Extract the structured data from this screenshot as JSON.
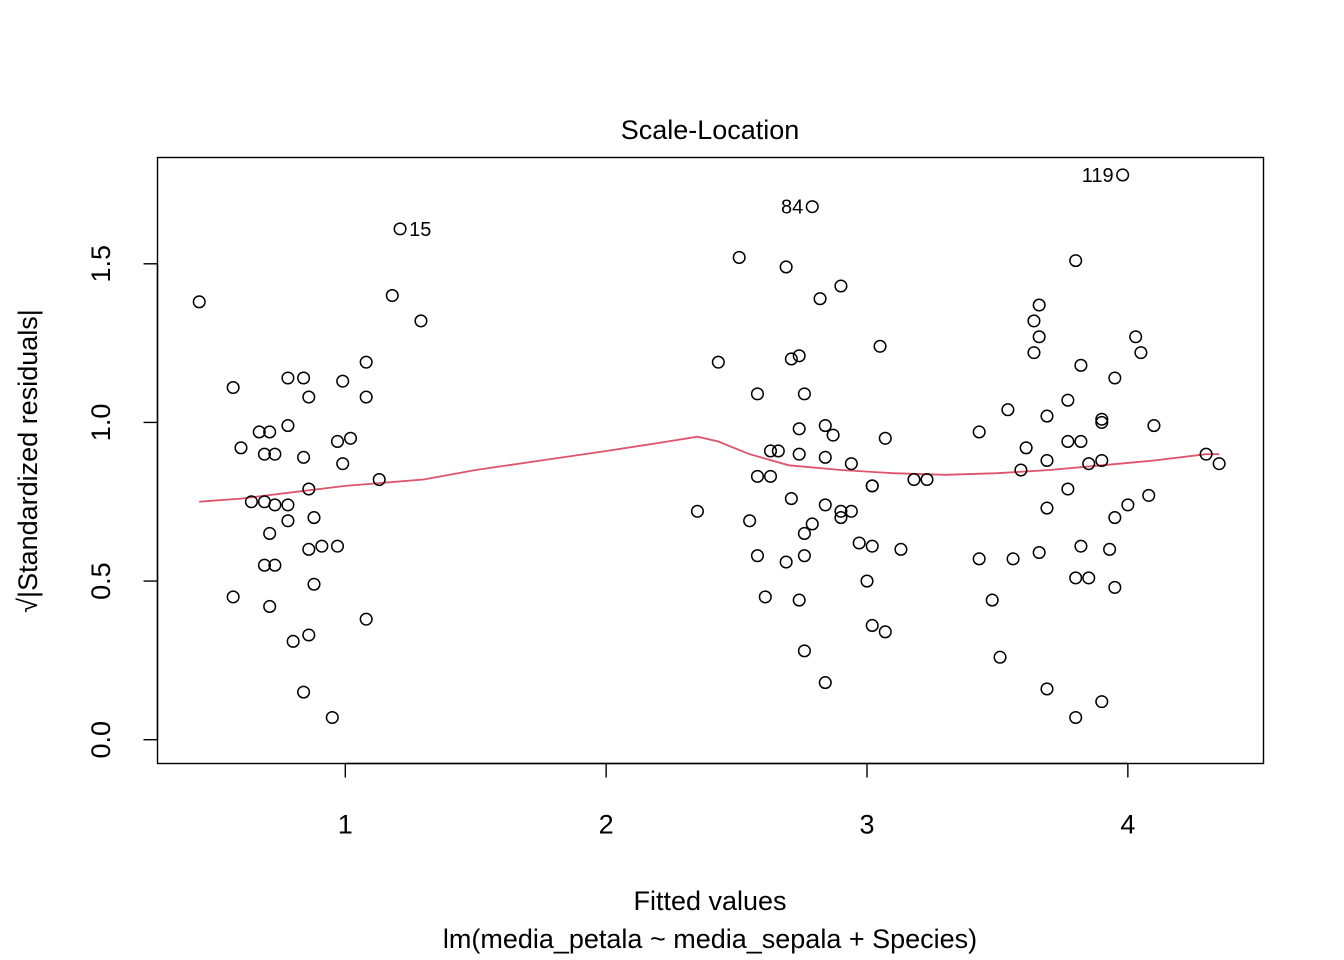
{
  "chart_data": {
    "type": "scatter",
    "title": "Scale-Location",
    "xlabel": "Fitted values",
    "subtitle": "lm(media_petala ~ media_sepala + Species)",
    "ylabel": "Standardized residuals",
    "ylabel_prefix": "√|",
    "ylabel_suffix": "|",
    "xlim": [
      0.28,
      4.52
    ],
    "ylim": [
      -0.075,
      1.835
    ],
    "x_ticks": [
      1,
      2,
      3,
      4
    ],
    "x_tick_labels": [
      "1",
      "2",
      "3",
      "4"
    ],
    "y_ticks": [
      0.0,
      0.5,
      1.0,
      1.5
    ],
    "y_tick_labels": [
      "0.0",
      "0.5",
      "1.0",
      "1.5"
    ],
    "grid": false,
    "series": [
      {
        "kind": "points",
        "points": [
          [
            0.44,
            1.38
          ],
          [
            0.57,
            1.11
          ],
          [
            0.57,
            0.45
          ],
          [
            0.6,
            0.92
          ],
          [
            0.64,
            0.75
          ],
          [
            0.67,
            0.97
          ],
          [
            0.69,
            0.9
          ],
          [
            0.69,
            0.75
          ],
          [
            0.69,
            0.55
          ],
          [
            0.71,
            0.97
          ],
          [
            0.71,
            0.65
          ],
          [
            0.71,
            0.42
          ],
          [
            0.73,
            0.9
          ],
          [
            0.73,
            0.74
          ],
          [
            0.73,
            0.55
          ],
          [
            0.78,
            1.14
          ],
          [
            0.78,
            0.99
          ],
          [
            0.78,
            0.74
          ],
          [
            0.78,
            0.69
          ],
          [
            0.8,
            0.31
          ],
          [
            0.84,
            1.14
          ],
          [
            0.84,
            0.89
          ],
          [
            0.84,
            0.15
          ],
          [
            0.86,
            1.08
          ],
          [
            0.86,
            0.79
          ],
          [
            0.86,
            0.6
          ],
          [
            0.86,
            0.33
          ],
          [
            0.88,
            0.7
          ],
          [
            0.88,
            0.49
          ],
          [
            0.91,
            0.61
          ],
          [
            0.95,
            0.07
          ],
          [
            0.97,
            0.94
          ],
          [
            0.97,
            0.61
          ],
          [
            0.99,
            1.13
          ],
          [
            0.99,
            0.87
          ],
          [
            1.02,
            0.95
          ],
          [
            1.08,
            1.19
          ],
          [
            1.08,
            1.08
          ],
          [
            1.08,
            0.38
          ],
          [
            1.13,
            0.82
          ],
          [
            1.18,
            1.4
          ],
          [
            1.21,
            1.61
          ],
          [
            1.29,
            1.32
          ],
          [
            2.35,
            0.72
          ],
          [
            2.43,
            1.19
          ],
          [
            2.51,
            1.52
          ],
          [
            2.55,
            0.69
          ],
          [
            2.58,
            1.09
          ],
          [
            2.58,
            0.83
          ],
          [
            2.58,
            0.58
          ],
          [
            2.61,
            0.45
          ],
          [
            2.63,
            0.91
          ],
          [
            2.63,
            0.83
          ],
          [
            2.66,
            0.91
          ],
          [
            2.69,
            1.49
          ],
          [
            2.69,
            0.56
          ],
          [
            2.71,
            1.2
          ],
          [
            2.71,
            0.76
          ],
          [
            2.74,
            1.21
          ],
          [
            2.74,
            0.98
          ],
          [
            2.74,
            0.9
          ],
          [
            2.74,
            0.44
          ],
          [
            2.76,
            1.09
          ],
          [
            2.76,
            0.65
          ],
          [
            2.76,
            0.58
          ],
          [
            2.76,
            0.28
          ],
          [
            2.79,
            1.68
          ],
          [
            2.79,
            0.68
          ],
          [
            2.82,
            1.39
          ],
          [
            2.84,
            0.99
          ],
          [
            2.84,
            0.89
          ],
          [
            2.84,
            0.74
          ],
          [
            2.84,
            0.18
          ],
          [
            2.87,
            0.96
          ],
          [
            2.9,
            1.43
          ],
          [
            2.9,
            0.72
          ],
          [
            2.9,
            0.7
          ],
          [
            2.94,
            0.87
          ],
          [
            2.94,
            0.72
          ],
          [
            2.97,
            0.62
          ],
          [
            3.0,
            0.5
          ],
          [
            3.02,
            0.8
          ],
          [
            3.02,
            0.8
          ],
          [
            3.02,
            0.61
          ],
          [
            3.02,
            0.36
          ],
          [
            3.05,
            1.24
          ],
          [
            3.07,
            0.95
          ],
          [
            3.07,
            0.34
          ],
          [
            3.13,
            0.6
          ],
          [
            3.18,
            0.82
          ],
          [
            3.23,
            0.82
          ],
          [
            3.43,
            0.97
          ],
          [
            3.43,
            0.57
          ],
          [
            3.48,
            0.44
          ],
          [
            3.51,
            0.26
          ],
          [
            3.54,
            1.04
          ],
          [
            3.56,
            0.57
          ],
          [
            3.59,
            0.85
          ],
          [
            3.61,
            0.92
          ],
          [
            3.64,
            1.32
          ],
          [
            3.64,
            1.22
          ],
          [
            3.66,
            1.37
          ],
          [
            3.66,
            1.27
          ],
          [
            3.66,
            0.59
          ],
          [
            3.69,
            1.02
          ],
          [
            3.69,
            0.88
          ],
          [
            3.69,
            0.73
          ],
          [
            3.69,
            0.16
          ],
          [
            3.77,
            1.07
          ],
          [
            3.77,
            0.94
          ],
          [
            3.77,
            0.79
          ],
          [
            3.8,
            1.51
          ],
          [
            3.8,
            0.51
          ],
          [
            3.8,
            0.07
          ],
          [
            3.82,
            1.18
          ],
          [
            3.82,
            0.94
          ],
          [
            3.82,
            0.61
          ],
          [
            3.85,
            0.87
          ],
          [
            3.85,
            0.51
          ],
          [
            3.9,
            1.01
          ],
          [
            3.9,
            1.0
          ],
          [
            3.9,
            0.88
          ],
          [
            3.9,
            0.12
          ],
          [
            3.93,
            0.6
          ],
          [
            3.95,
            1.14
          ],
          [
            3.95,
            0.7
          ],
          [
            3.95,
            0.48
          ],
          [
            3.98,
            1.78
          ],
          [
            4.0,
            0.74
          ],
          [
            4.03,
            1.27
          ],
          [
            4.05,
            1.22
          ],
          [
            4.08,
            0.77
          ],
          [
            4.1,
            0.99
          ],
          [
            4.3,
            0.9
          ],
          [
            4.35,
            0.87
          ]
        ]
      },
      {
        "kind": "smoother",
        "color": "#DF536B",
        "points": [
          [
            0.44,
            0.75
          ],
          [
            0.6,
            0.76
          ],
          [
            0.8,
            0.78
          ],
          [
            1.0,
            0.8
          ],
          [
            1.15,
            0.81
          ],
          [
            1.3,
            0.82
          ],
          [
            1.5,
            0.85
          ],
          [
            1.75,
            0.88
          ],
          [
            2.0,
            0.91
          ],
          [
            2.2,
            0.935
          ],
          [
            2.35,
            0.955
          ],
          [
            2.43,
            0.94
          ],
          [
            2.55,
            0.9
          ],
          [
            2.7,
            0.865
          ],
          [
            2.9,
            0.85
          ],
          [
            3.1,
            0.84
          ],
          [
            3.3,
            0.835
          ],
          [
            3.5,
            0.84
          ],
          [
            3.7,
            0.85
          ],
          [
            3.9,
            0.865
          ],
          [
            4.1,
            0.88
          ],
          [
            4.3,
            0.9
          ],
          [
            4.35,
            0.9
          ]
        ]
      }
    ],
    "annotations": [
      {
        "text": "15",
        "x": 1.21,
        "y": 1.61,
        "side": "right"
      },
      {
        "text": "84",
        "x": 2.79,
        "y": 1.68,
        "side": "left"
      },
      {
        "text": "119",
        "x": 3.98,
        "y": 1.78,
        "side": "left"
      }
    ]
  }
}
